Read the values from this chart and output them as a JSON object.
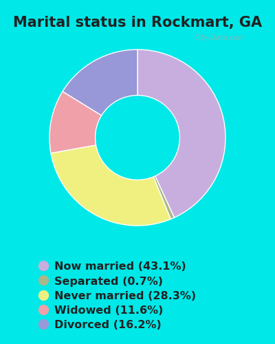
{
  "title": "Marital status in Rockmart, GA",
  "categories": [
    "Now married",
    "Separated",
    "Never married",
    "Widowed",
    "Divorced"
  ],
  "values": [
    43.1,
    0.7,
    28.3,
    11.6,
    16.2
  ],
  "colors": [
    "#c8aede",
    "#a8b888",
    "#f0f080",
    "#f0a0a8",
    "#9898d8"
  ],
  "legend_labels": [
    "Now married (43.1%)",
    "Separated (0.7%)",
    "Never married (28.3%)",
    "Widowed (11.6%)",
    "Divorced (16.2%)"
  ],
  "bg_outer": "#00e8e8",
  "bg_chart": "#e0f0e8",
  "watermark": "City-Data.com",
  "title_fontsize": 15,
  "legend_fontsize": 11.5,
  "title_color": "#222222",
  "legend_text_color": "#222222"
}
